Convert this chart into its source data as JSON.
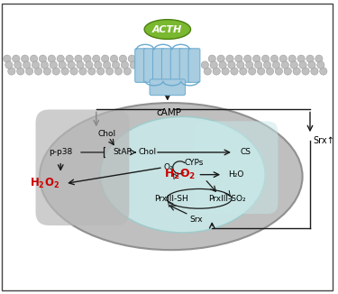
{
  "bg_color": "#ffffff",
  "border_color": "#444444",
  "dot_color": "#c0c0c0",
  "dot_edge": "#909090",
  "receptor_color": "#a8cce0",
  "receptor_dark": "#6aaad0",
  "acth_fill": "#7ab830",
  "acth_edge": "#4a8010",
  "acth_text": "ACTH",
  "mito_outer_fill": "#b8b8b8",
  "mito_outer_edge": "#888888",
  "mito_inner_fill": "#c8e8e8",
  "mito_inner_edge": "#99cccc",
  "camp_label": "cAMP",
  "Chol1": "Chol",
  "Chol2": "Chol",
  "StAR": "StAR",
  "CYPs": "CYPs",
  "CS": "CS",
  "O2": "O₂",
  "H2O2": "H₂O₂",
  "H2O": "H₂O",
  "PrxIII_SH": "PrxIII-SH",
  "PrxIII_SO2": "PrxIII-SO₂",
  "Srx": "Srx",
  "Srx_up": "Srx↑",
  "pp38": "p-p38",
  "arrow_color": "#1a1a1a",
  "red_color": "#cc0000",
  "font_size": 6.5
}
